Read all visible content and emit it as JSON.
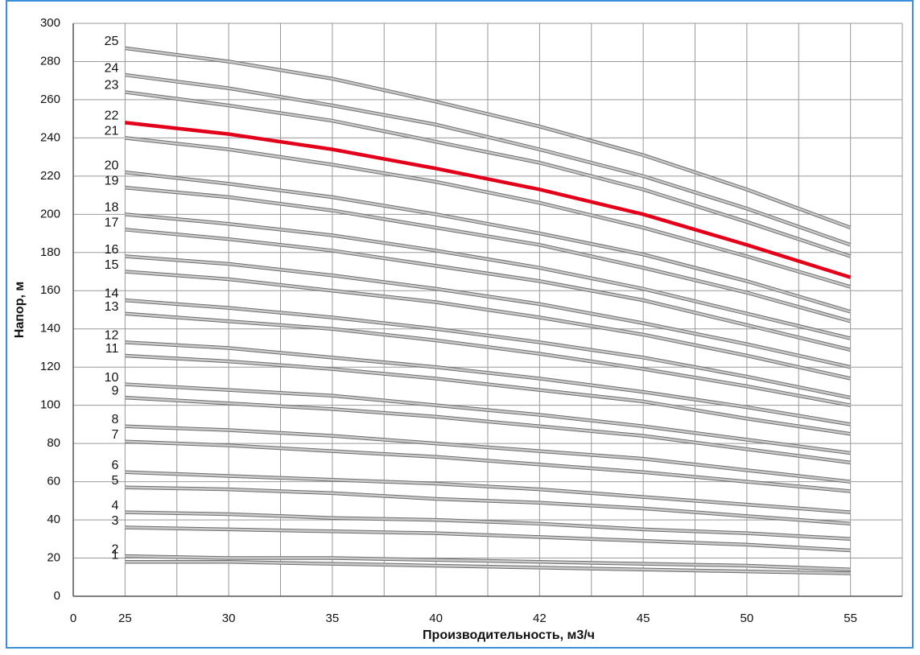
{
  "chart_data": {
    "type": "line",
    "xlabel": "Производительность, м3/ч",
    "ylabel": "Напор, м",
    "xlim": [
      0,
      16
    ],
    "xticks": [
      0,
      {
        "value": 1,
        "label": "25"
      },
      {
        "value": 3,
        "label": "30"
      },
      {
        "value": 5,
        "label": "35"
      },
      {
        "value": 7,
        "label": "40"
      },
      {
        "value": 9,
        "label": "42"
      },
      {
        "value": 11,
        "label": "45"
      },
      {
        "value": 13,
        "label": "50"
      },
      {
        "value": 15,
        "label": "55"
      }
    ],
    "xminorticks": [
      2,
      4,
      6,
      8,
      10,
      12,
      14,
      16
    ],
    "ylim": [
      0,
      300
    ],
    "yticks": [
      0,
      20,
      40,
      60,
      80,
      100,
      120,
      140,
      160,
      180,
      200,
      220,
      240,
      260,
      280,
      300
    ],
    "grid": true,
    "x": [
      1,
      3,
      5,
      7,
      9,
      11,
      13,
      15
    ],
    "series": [
      {
        "name": "1",
        "color": "#c8c8c8",
        "values": [
          18,
          18,
          17,
          16,
          15,
          14,
          13,
          12
        ]
      },
      {
        "name": "2",
        "color": "#c8c8c8",
        "values": [
          21,
          20,
          20,
          19,
          18,
          17,
          16,
          14
        ]
      },
      {
        "name": "3",
        "color": "#c8c8c8",
        "values": [
          36,
          35,
          34,
          33,
          31,
          29,
          27,
          24
        ]
      },
      {
        "name": "4",
        "color": "#c8c8c8",
        "values": [
          44,
          43,
          41,
          40,
          38,
          35,
          33,
          30
        ]
      },
      {
        "name": "5",
        "color": "#c8c8c8",
        "values": [
          57,
          56,
          54,
          51,
          49,
          46,
          42,
          38
        ]
      },
      {
        "name": "6",
        "color": "#c8c8c8",
        "values": [
          65,
          63,
          61,
          59,
          56,
          52,
          48,
          44
        ]
      },
      {
        "name": "7",
        "color": "#c8c8c8",
        "values": [
          81,
          79,
          76,
          73,
          69,
          65,
          60,
          55
        ]
      },
      {
        "name": "8",
        "color": "#c8c8c8",
        "values": [
          89,
          87,
          84,
          80,
          76,
          72,
          66,
          60
        ]
      },
      {
        "name": "9",
        "color": "#c8c8c8",
        "values": [
          104,
          101,
          98,
          94,
          89,
          84,
          77,
          70
        ]
      },
      {
        "name": "10",
        "color": "#c8c8c8",
        "values": [
          111,
          108,
          105,
          100,
          95,
          89,
          82,
          75
        ]
      },
      {
        "name": "11",
        "color": "#c8c8c8",
        "values": [
          126,
          123,
          119,
          114,
          108,
          102,
          93,
          85
        ]
      },
      {
        "name": "12",
        "color": "#c8c8c8",
        "values": [
          133,
          130,
          125,
          120,
          114,
          107,
          99,
          90
        ]
      },
      {
        "name": "13",
        "color": "#c8c8c8",
        "values": [
          148,
          144,
          140,
          134,
          127,
          119,
          110,
          100
        ]
      },
      {
        "name": "14",
        "color": "#c8c8c8",
        "values": [
          155,
          151,
          146,
          140,
          133,
          125,
          115,
          104
        ]
      },
      {
        "name": "15",
        "color": "#c8c8c8",
        "values": [
          170,
          166,
          160,
          154,
          146,
          137,
          126,
          114
        ]
      },
      {
        "name": "16",
        "color": "#c8c8c8",
        "values": [
          178,
          174,
          168,
          161,
          153,
          143,
          132,
          120
        ]
      },
      {
        "name": "17",
        "color": "#c8c8c8",
        "values": [
          192,
          187,
          181,
          173,
          165,
          155,
          142,
          129
        ]
      },
      {
        "name": "18",
        "color": "#c8c8c8",
        "values": [
          200,
          195,
          189,
          181,
          172,
          161,
          148,
          135
        ]
      },
      {
        "name": "19",
        "color": "#c8c8c8",
        "values": [
          214,
          209,
          202,
          193,
          184,
          172,
          159,
          144
        ]
      },
      {
        "name": "20",
        "color": "#c8c8c8",
        "values": [
          222,
          216,
          209,
          200,
          190,
          179,
          165,
          149
        ]
      },
      {
        "name": "21",
        "color": "#c8c8c8",
        "values": [
          240,
          234,
          226,
          217,
          206,
          193,
          178,
          162
        ]
      },
      {
        "name": "22",
        "color": "#e3001b",
        "values": [
          248,
          242,
          234,
          224,
          213,
          200,
          184,
          167
        ]
      },
      {
        "name": "23",
        "color": "#c8c8c8",
        "values": [
          264,
          257,
          249,
          238,
          227,
          213,
          196,
          178
        ]
      },
      {
        "name": "24",
        "color": "#c8c8c8",
        "values": [
          273,
          266,
          257,
          247,
          234,
          220,
          203,
          184
        ]
      },
      {
        "name": "25",
        "color": "#c8c8c8",
        "values": [
          287,
          280,
          271,
          259,
          246,
          231,
          213,
          193
        ]
      }
    ]
  }
}
